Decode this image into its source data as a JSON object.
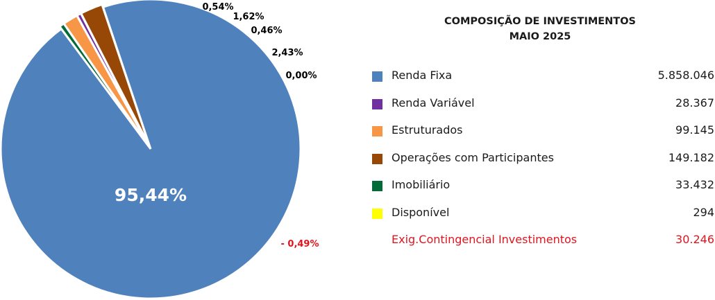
{
  "chart_data": {
    "type": "pie",
    "title": [
      "COMPOSIÇÃO DE INVESTIMENTOS",
      "MAIO 2025"
    ],
    "slices": [
      {
        "name": "Renda Fixa",
        "label": "95,44%",
        "percent": 95.44,
        "value": "5.858.046",
        "color": "#4f81bd"
      },
      {
        "name": "Imobiliário",
        "label": "0,54%",
        "percent": 0.54,
        "value": "33.432",
        "color": "#046a38"
      },
      {
        "name": "Estruturados",
        "label": "1,62%",
        "percent": 1.62,
        "value": "99.145",
        "color": "#f79646"
      },
      {
        "name": "Renda Variável",
        "label": "0,46%",
        "percent": 0.46,
        "value": "28.367",
        "color": "#7030a0"
      },
      {
        "name": "Operações com Participantes",
        "label": "2,43%",
        "percent": 2.43,
        "value": "149.182",
        "color": "#974706"
      },
      {
        "name": "Disponível",
        "label": "0,00%",
        "percent": 0.0,
        "value": "294",
        "color": "#ffff00"
      }
    ],
    "negative": {
      "name": "Exig.Contingencial Investimentos",
      "label": "- 0,49%",
      "percent": -0.49,
      "value": "30.246",
      "color": "#e0141e"
    },
    "legend_order": [
      "Renda Fixa",
      "Renda Variável",
      "Estruturados",
      "Operações com Participantes",
      "Imobiliário",
      "Disponível"
    ],
    "legend_placement": "right"
  }
}
